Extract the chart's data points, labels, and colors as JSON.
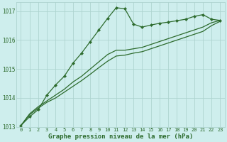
{
  "title": "Graphe pression niveau de la mer (hPa)",
  "hours": [
    0,
    1,
    2,
    3,
    4,
    5,
    6,
    7,
    8,
    9,
    10,
    11,
    12,
    13,
    14,
    15,
    16,
    17,
    18,
    19,
    20,
    21,
    22,
    23
  ],
  "line_marked": [
    1013.05,
    1013.35,
    1013.6,
    1014.1,
    1014.45,
    1014.75,
    1015.2,
    1015.55,
    1015.95,
    1016.35,
    1016.75,
    1017.12,
    1017.08,
    1016.55,
    1016.45,
    1016.52,
    1016.58,
    1016.62,
    1016.67,
    1016.72,
    1016.82,
    1016.88,
    1016.72,
    1016.68
  ],
  "line_mid": [
    1013.05,
    1013.45,
    1013.7,
    1013.9,
    1014.1,
    1014.3,
    1014.55,
    1014.75,
    1015.0,
    1015.25,
    1015.5,
    1015.65,
    1015.65,
    1015.7,
    1015.75,
    1015.85,
    1015.95,
    1016.05,
    1016.15,
    1016.25,
    1016.35,
    1016.45,
    1016.6,
    1016.68
  ],
  "line_low": [
    1013.05,
    1013.42,
    1013.65,
    1013.85,
    1014.0,
    1014.2,
    1014.4,
    1014.6,
    1014.82,
    1015.05,
    1015.27,
    1015.45,
    1015.48,
    1015.55,
    1015.6,
    1015.7,
    1015.8,
    1015.9,
    1016.0,
    1016.1,
    1016.2,
    1016.3,
    1016.5,
    1016.65
  ],
  "bg_color": "#ceeeed",
  "grid_color": "#aed4d0",
  "line_color": "#2d6b2d",
  "ylim_min": 1013.0,
  "ylim_max": 1017.3,
  "yticks": [
    1013,
    1014,
    1015,
    1016,
    1017
  ],
  "marker": "D",
  "marker_size": 2.2,
  "linewidth": 0.9,
  "title_fontsize": 6.5,
  "tick_fontsize": 5.0
}
